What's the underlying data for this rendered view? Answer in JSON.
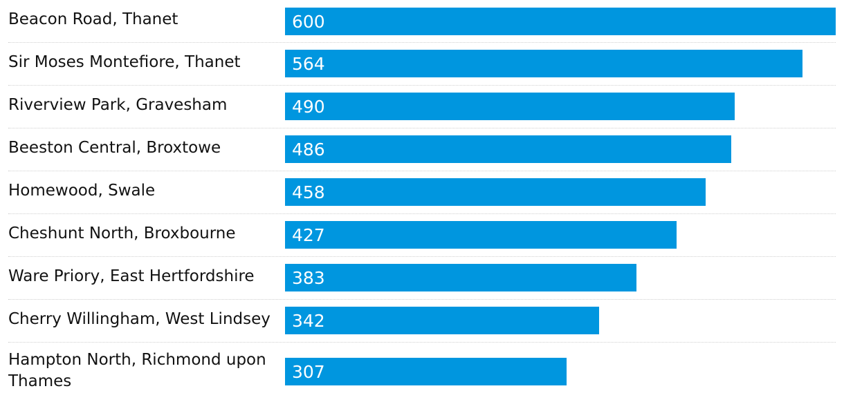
{
  "chart_data": {
    "type": "bar",
    "orientation": "horizontal",
    "categories": [
      "Beacon Road, Thanet",
      "Sir Moses Montefiore, Thanet",
      "Riverview Park, Gravesham",
      "Beeston Central, Broxtowe",
      "Homewood, Swale",
      "Cheshunt North, Broxbourne",
      "Ware Priory, East Hertfordshire",
      "Cherry Willingham, West Lindsey",
      "Hampton North, Richmond upon Thames"
    ],
    "values": [
      600,
      564,
      490,
      486,
      458,
      427,
      383,
      342,
      307
    ],
    "xlim": [
      0,
      600
    ],
    "bar_color": "#0096df",
    "value_label_color": "#ffffff",
    "grid": false,
    "row_dividers": true
  }
}
